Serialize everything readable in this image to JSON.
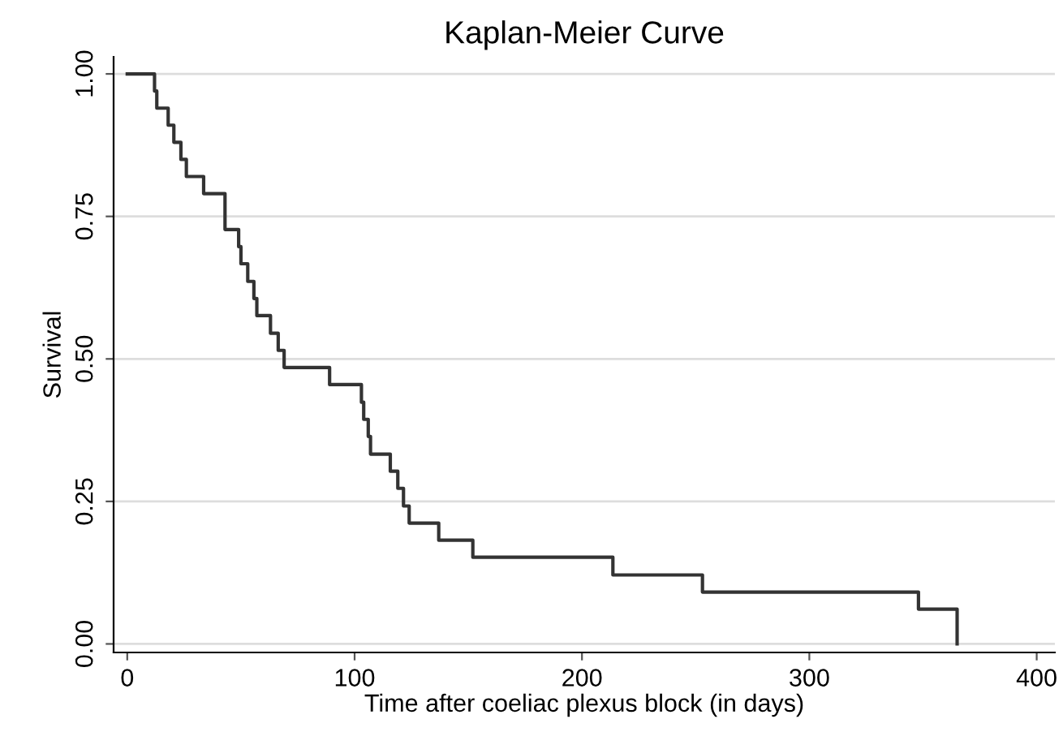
{
  "chart_data": {
    "type": "step",
    "title": "Kaplan-Meier Curve",
    "xlabel": "Time after coeliac plexus block (in days)",
    "ylabel": "Survival",
    "x": [
      0,
      12,
      13,
      18,
      20.5,
      23.6,
      26,
      33.6,
      43,
      49,
      50,
      53,
      55.7,
      57,
      63,
      66.4,
      69,
      89,
      103,
      104,
      106,
      107,
      115.7,
      119,
      121.5,
      124,
      137,
      152,
      213.6,
      253,
      348,
      365
    ],
    "series": [
      {
        "color": "#333333",
        "values": [
          1.0,
          0.97,
          0.94,
          0.91,
          0.88,
          0.85,
          0.82,
          0.79,
          0.727,
          0.697,
          0.667,
          0.636,
          0.606,
          0.576,
          0.545,
          0.515,
          0.485,
          0.455,
          0.424,
          0.394,
          0.364,
          0.333,
          0.303,
          0.273,
          0.242,
          0.212,
          0.182,
          0.152,
          0.121,
          0.091,
          0.061,
          0.0
        ]
      }
    ],
    "xlim": [
      -6,
      408
    ],
    "ylim": [
      -0.015,
      1.03
    ],
    "xticks": [
      0,
      100,
      200,
      300,
      400
    ],
    "yticks": [
      {
        "value": 0,
        "label": "0.00"
      },
      {
        "value": 0.25,
        "label": "0.25"
      },
      {
        "value": 0.5,
        "label": "0.50"
      },
      {
        "value": 0.75,
        "label": "0.75"
      },
      {
        "value": 1,
        "label": "1.00"
      }
    ],
    "grid": "y",
    "legend": false,
    "line_style": "solid",
    "marker": "none"
  }
}
